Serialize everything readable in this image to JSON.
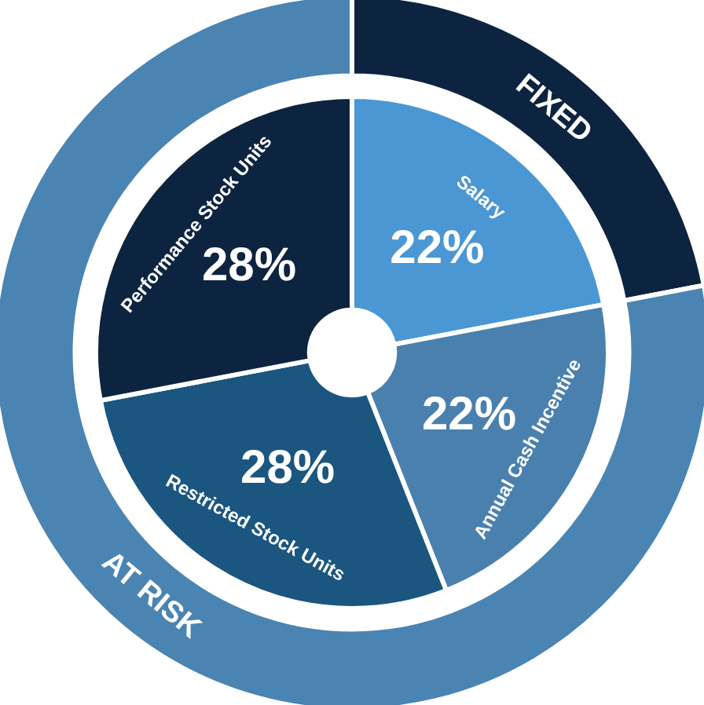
{
  "chart_data": [
    {
      "type": "donut",
      "categories": [
        "Salary",
        "Annual Cash Incentive",
        "Restricted Stock Units",
        "Performance Stock Units"
      ],
      "values": [
        22,
        22,
        28,
        28
      ],
      "colors": [
        "#4a97d4",
        "#4a80ad",
        "#1a5680",
        "#0d2440"
      ],
      "value_labels": [
        "22%",
        "22%",
        "28%",
        "28%"
      ]
    },
    {
      "type": "donut",
      "categories": [
        "FIXED",
        "AT RISK"
      ],
      "values": [
        22,
        78
      ],
      "colors": [
        "#0d2440",
        "#4a84b2"
      ]
    }
  ]
}
